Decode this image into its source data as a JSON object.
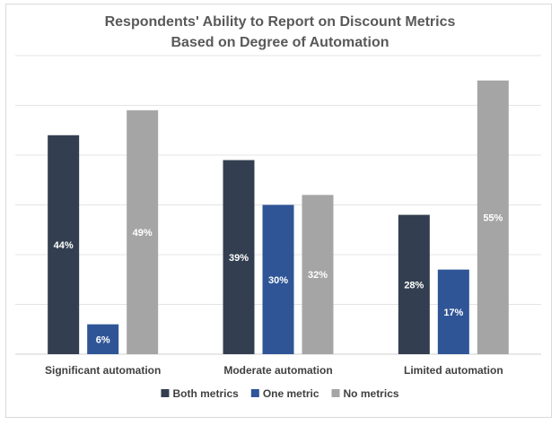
{
  "chart_data": {
    "type": "bar",
    "title": "Respondents' Ability to Report on Discount Metrics",
    "subtitle": "Based on Degree of Automation",
    "categories": [
      "Significant automation",
      "Moderate automation",
      "Limited automation"
    ],
    "series": [
      {
        "name": "Both metrics",
        "values": [
          44,
          39,
          28
        ],
        "labels": [
          "44%",
          "39%",
          "28%"
        ],
        "color": "#333f50"
      },
      {
        "name": "One metric",
        "values": [
          6,
          30,
          17
        ],
        "labels": [
          "6%",
          "30%",
          "17%"
        ],
        "color": "#2f5597"
      },
      {
        "name": "No metrics",
        "values": [
          49,
          32,
          55
        ],
        "labels": [
          "49%",
          "32%",
          "55%"
        ],
        "color": "#a5a5a5"
      }
    ],
    "ylim": [
      0,
      60
    ],
    "grid": true,
    "legend_position": "bottom"
  }
}
